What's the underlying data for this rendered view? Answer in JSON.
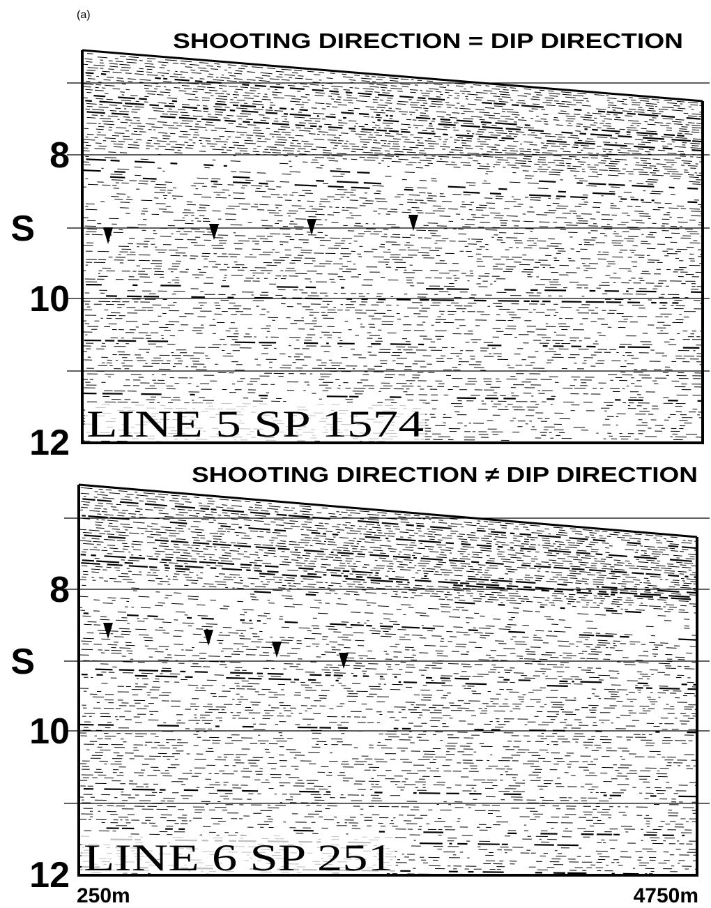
{
  "label": "(a)",
  "panels": [
    {
      "title": "SHOOTING DIRECTION = DIP DIRECTION",
      "axis_labels": [
        "8",
        "S",
        "10",
        "12"
      ],
      "line_label": "LINE 5 SP 1574"
    },
    {
      "title": "SHOOTING DIRECTION ≠ DIP DIRECTION",
      "axis_labels": [
        "8",
        "S",
        "10",
        "12"
      ],
      "line_label": "LINE 6 SP 251"
    }
  ],
  "x_axis_labels": [
    "250m",
    "4750m"
  ]
}
